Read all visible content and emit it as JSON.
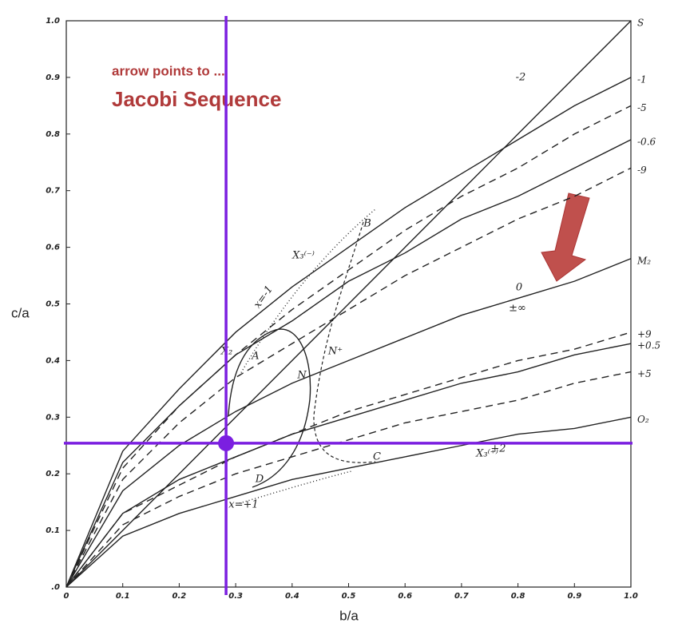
{
  "chart_data": {
    "type": "line",
    "xlabel": "b/a",
    "ylabel": "c/a",
    "annotations": [
      "arrow points to ...",
      "Jacobi Sequence"
    ],
    "point_labels": [
      "B",
      "A",
      "N",
      "N⁺",
      "C",
      "D",
      "x=-1",
      "x=+1",
      "X₃⁽⁻⁾",
      "X₃⁽⁺⁾",
      "X₂",
      "-2",
      "0",
      "±∞",
      "+2"
    ],
    "x": [
      0,
      0.1,
      0.2,
      0.3,
      0.4,
      0.5,
      0.6,
      0.7,
      0.8,
      0.9,
      1.0
    ],
    "series": [
      {
        "name": "S",
        "color": "#222222",
        "dashed": false,
        "values": [
          0,
          0.1,
          0.2,
          0.3,
          0.4,
          0.5,
          0.6,
          0.7,
          0.8,
          0.9,
          1.0
        ]
      },
      {
        "name": "-1",
        "color": "#222222",
        "dashed": false,
        "values": [
          0,
          0.24,
          0.35,
          0.45,
          0.53,
          0.6,
          0.67,
          0.73,
          0.79,
          0.85,
          0.9
        ]
      },
      {
        "name": "-5",
        "color": "#222222",
        "dashed": true,
        "values": [
          0,
          0.21,
          0.32,
          0.41,
          0.49,
          0.56,
          0.63,
          0.69,
          0.74,
          0.8,
          0.85
        ]
      },
      {
        "name": "-0.6",
        "color": "#222222",
        "dashed": false,
        "values": [
          0,
          0.22,
          0.32,
          0.41,
          0.47,
          0.54,
          0.59,
          0.65,
          0.69,
          0.74,
          0.79
        ]
      },
      {
        "name": "-9",
        "color": "#222222",
        "dashed": true,
        "values": [
          0,
          0.19,
          0.29,
          0.37,
          0.43,
          0.49,
          0.55,
          0.6,
          0.65,
          0.69,
          0.74
        ]
      },
      {
        "name": "M₂",
        "color": "#222222",
        "dashed": false,
        "values": [
          0,
          0.17,
          0.25,
          0.31,
          0.36,
          0.4,
          0.44,
          0.48,
          0.51,
          0.54,
          0.58
        ]
      },
      {
        "name": "+9",
        "color": "#222222",
        "dashed": true,
        "values": [
          0,
          0.13,
          0.18,
          0.23,
          0.27,
          0.31,
          0.34,
          0.37,
          0.4,
          0.42,
          0.45
        ]
      },
      {
        "name": "+0.5",
        "color": "#222222",
        "dashed": false,
        "values": [
          0,
          0.13,
          0.19,
          0.23,
          0.27,
          0.3,
          0.33,
          0.36,
          0.38,
          0.41,
          0.43
        ]
      },
      {
        "name": "+5",
        "color": "#222222",
        "dashed": true,
        "values": [
          0,
          0.11,
          0.16,
          0.2,
          0.23,
          0.26,
          0.29,
          0.31,
          0.33,
          0.36,
          0.38
        ]
      },
      {
        "name": "O₂",
        "color": "#222222",
        "dashed": false,
        "values": [
          0,
          0.09,
          0.13,
          0.16,
          0.19,
          0.21,
          0.23,
          0.25,
          0.27,
          0.28,
          0.3
        ]
      }
    ],
    "crosshair": {
      "x": 0.283,
      "y": 0.254,
      "color": "#7b1fe0"
    },
    "xlim": [
      0,
      1
    ],
    "ylim": [
      0,
      1
    ],
    "xticks": [
      0,
      0.1,
      0.2,
      0.3,
      0.4,
      0.5,
      0.6,
      0.7,
      0.8,
      0.9,
      {
        "value": 1,
        "label": "1.0"
      }
    ],
    "yticks": [
      {
        "value": 0,
        "label": ".0"
      },
      0.1,
      0.2,
      0.3,
      0.4,
      0.5,
      0.6,
      0.7,
      0.8,
      0.9,
      {
        "value": 1,
        "label": "1.0"
      }
    ]
  }
}
